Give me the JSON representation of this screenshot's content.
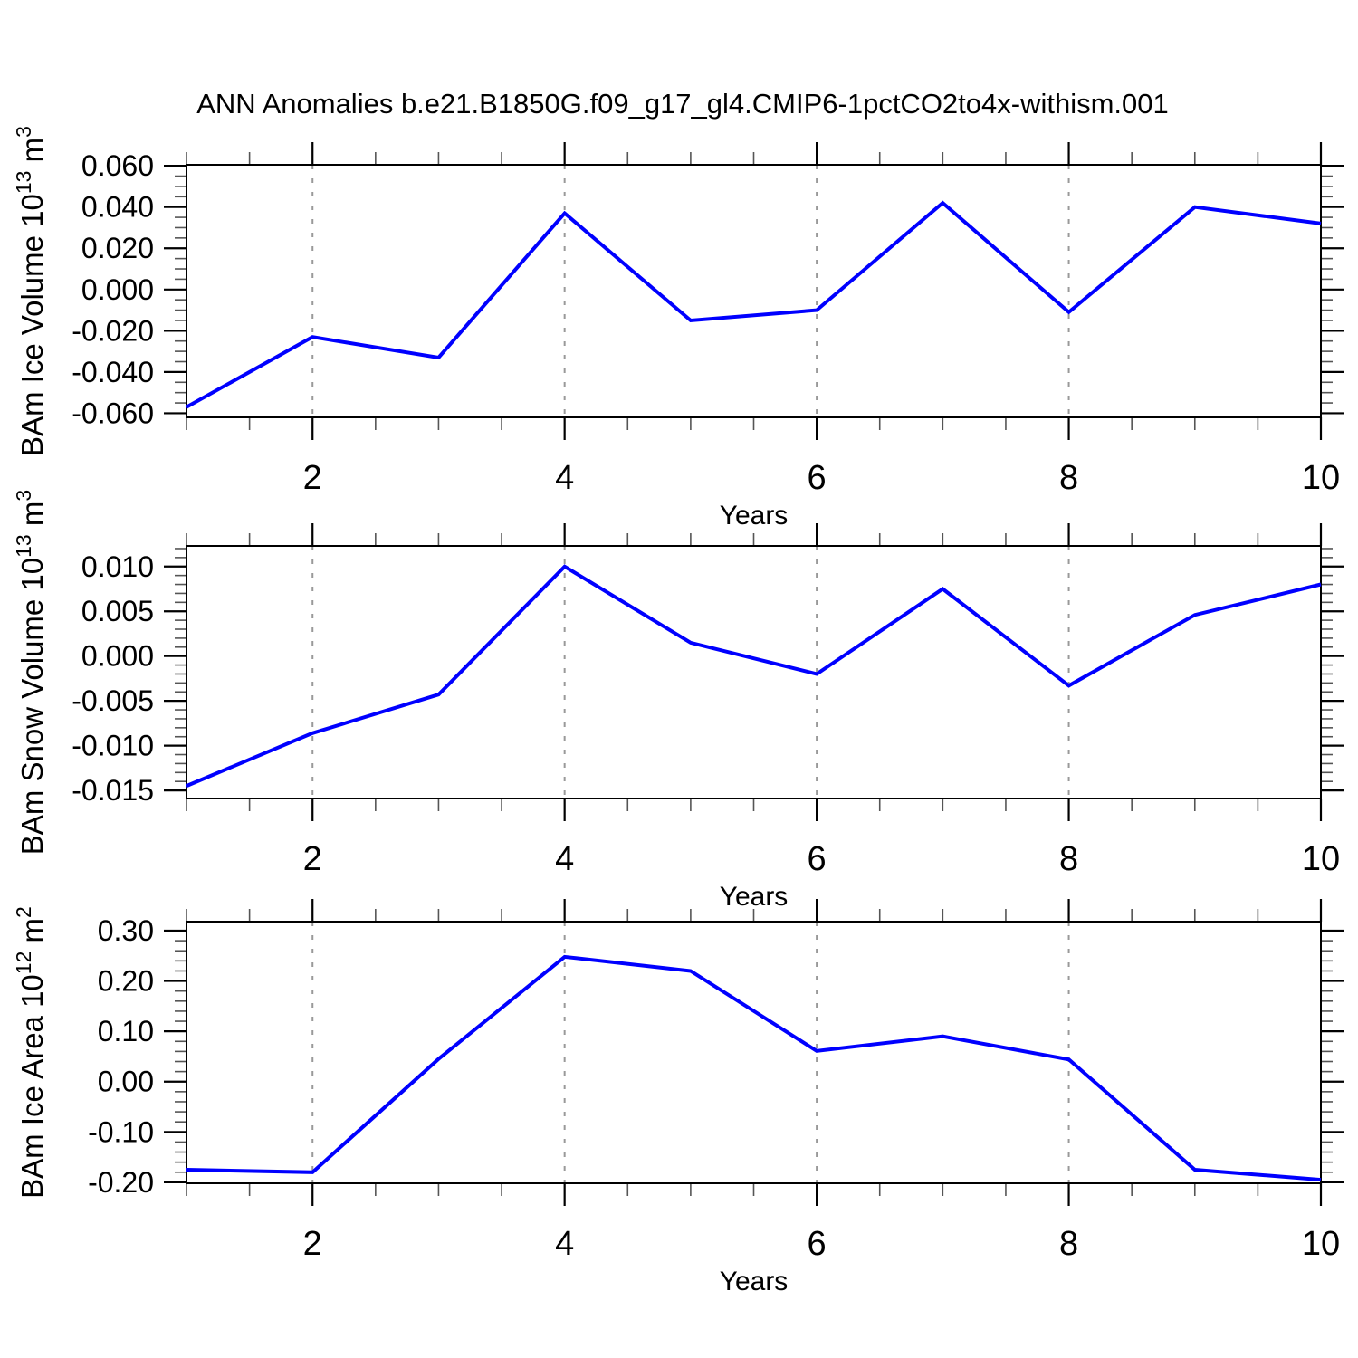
{
  "title": "ANN Anomalies b.e21.B1850G.f09_g17_gl4.CMIP6-1pctCO2to4x-withism.001",
  "colors": {
    "line": "#0000ff",
    "grid": "#999999",
    "frame": "#000000",
    "major_tick": "#000000",
    "minor_tick": "#555555",
    "text": "#000000",
    "background": "#ffffff"
  },
  "chart_data": [
    {
      "type": "line",
      "ylabel": "BAm Ice Volume 10^13 m^3",
      "ylabel_rich": [
        {
          "t": "BAm Ice Volume 10"
        },
        {
          "t": "13",
          "s": 1
        },
        {
          "t": " m"
        },
        {
          "t": "3",
          "s": 1
        }
      ],
      "xlabel": "Years",
      "x": [
        1,
        2,
        3,
        4,
        5,
        6,
        7,
        8,
        9,
        10
      ],
      "y": [
        -0.057,
        -0.023,
        -0.033,
        0.037,
        -0.015,
        -0.01,
        0.042,
        -0.011,
        0.04,
        0.032
      ],
      "xlim": [
        1,
        10
      ],
      "ylim": [
        -0.062,
        0.0605
      ],
      "yticks": {
        "values": [
          0.06,
          0.04,
          0.02,
          0.0,
          -0.02,
          -0.04,
          -0.06
        ],
        "labels": [
          "0.060",
          "0.040",
          "0.020",
          "0.000",
          "-0.020",
          "-0.040",
          "-0.060"
        ],
        "minor_step": 0.005
      },
      "xticks": {
        "values": [
          2,
          4,
          6,
          8,
          10
        ],
        "labels": [
          "2",
          "4",
          "6",
          "8",
          "10"
        ],
        "minor_step": 0.5
      },
      "gridlines_x": [
        2,
        4,
        6,
        8
      ],
      "grid_y": "off",
      "legend": "none"
    },
    {
      "type": "line",
      "ylabel": "BAm Snow Volume 10^13 m^3",
      "ylabel_rich": [
        {
          "t": "BAm Snow Volume 10"
        },
        {
          "t": "13",
          "s": 1
        },
        {
          "t": " m"
        },
        {
          "t": "3",
          "s": 1
        }
      ],
      "xlabel": "Years",
      "x": [
        1,
        2,
        3,
        4,
        5,
        6,
        7,
        8,
        9,
        10
      ],
      "y": [
        -0.0145,
        -0.0086,
        -0.0043,
        0.01,
        0.0015,
        -0.002,
        0.0075,
        -0.0033,
        0.0046,
        0.008
      ],
      "xlim": [
        1,
        10
      ],
      "ylim": [
        -0.0159,
        0.0123
      ],
      "yticks": {
        "values": [
          0.01,
          0.005,
          0.0,
          -0.005,
          -0.01,
          -0.015
        ],
        "labels": [
          "0.010",
          "0.005",
          "0.000",
          "-0.005",
          "-0.010",
          "-0.015"
        ],
        "minor_step": 0.001
      },
      "xticks": {
        "values": [
          2,
          4,
          6,
          8,
          10
        ],
        "labels": [
          "2",
          "4",
          "6",
          "8",
          "10"
        ],
        "minor_step": 0.5
      },
      "gridlines_x": [
        2,
        4,
        6,
        8
      ],
      "grid_y": "off",
      "legend": "none"
    },
    {
      "type": "line",
      "ylabel": "BAm Ice Area 10^12 m^2",
      "ylabel_rich": [
        {
          "t": "BAm Ice Area 10"
        },
        {
          "t": "12",
          "s": 1
        },
        {
          "t": " m"
        },
        {
          "t": "2",
          "s": 1
        }
      ],
      "xlabel": "Years",
      "x": [
        1,
        2,
        3,
        4,
        5,
        6,
        7,
        8,
        9,
        10
      ],
      "y": [
        -0.175,
        -0.18,
        0.045,
        0.248,
        0.22,
        0.061,
        0.09,
        0.044,
        -0.175,
        -0.195
      ],
      "xlim": [
        1,
        10
      ],
      "ylim": [
        -0.202,
        0.318
      ],
      "yticks": {
        "values": [
          0.3,
          0.2,
          0.1,
          0.0,
          -0.1,
          -0.2
        ],
        "labels": [
          "0.30",
          "0.20",
          "0.10",
          "0.00",
          "-0.10",
          "-0.20"
        ],
        "minor_step": 0.02
      },
      "xticks": {
        "values": [
          2,
          4,
          6,
          8,
          10
        ],
        "labels": [
          "2",
          "4",
          "6",
          "8",
          "10"
        ],
        "minor_step": 0.5
      },
      "gridlines_x": [
        2,
        4,
        6,
        8
      ],
      "grid_y": "off",
      "legend": "none"
    }
  ]
}
